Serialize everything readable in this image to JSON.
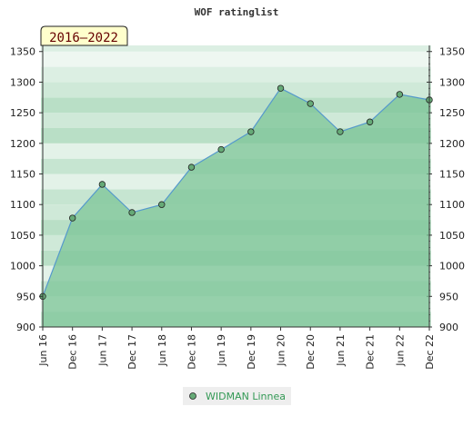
{
  "chart_data": {
    "type": "area",
    "title": "WOF ratinglist",
    "range_label": "2016–2022",
    "x": [
      "Jun 16",
      "Dec 16",
      "Jun 17",
      "Dec 17",
      "Jun 18",
      "Dec 18",
      "Jun 19",
      "Dec 19",
      "Jun 20",
      "Dec 20",
      "Jun 21",
      "Dec 21",
      "Jun 22",
      "Dec 22"
    ],
    "series": [
      {
        "name": "WIDMAN Linnea",
        "values": [
          950,
          1078,
          1133,
          1087,
          1100,
          1161,
          1190,
          1219,
          1290,
          1265,
          1219,
          1235,
          1280,
          1271
        ]
      }
    ],
    "yticks": [
      900,
      950,
      1000,
      1050,
      1100,
      1150,
      1200,
      1250,
      1300,
      1350
    ],
    "ylim": [
      900,
      1360
    ],
    "grid": true,
    "legend_position": "bottom",
    "colors": {
      "line": "#5599cc",
      "marker": "#66aa77",
      "fill": "#7cc497"
    }
  }
}
